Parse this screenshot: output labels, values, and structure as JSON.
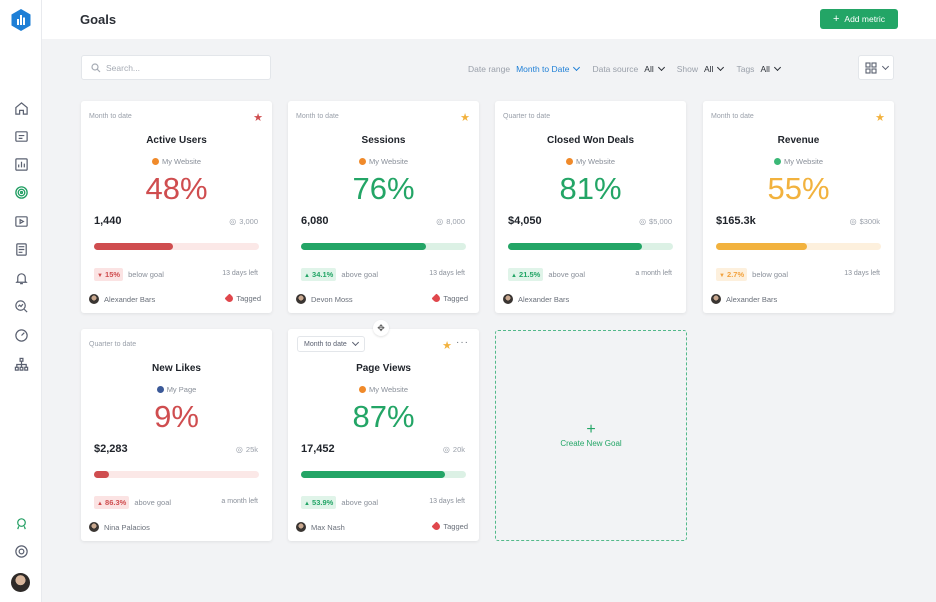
{
  "app": {
    "page_title": "Goals",
    "add_metric_label": "Add metric"
  },
  "search": {
    "placeholder": "Search..."
  },
  "filters": {
    "date_range_label": "Date range",
    "date_range_value": "Month to Date",
    "data_source_label": "Data source",
    "data_source_value": "All",
    "show_label": "Show",
    "show_value": "All",
    "tags_label": "Tags",
    "tags_value": "All"
  },
  "colors": {
    "accent": "#23a566",
    "red": "#cf4d4f",
    "green": "#23a566",
    "orange": "#f2b23e",
    "blue": "#1e7fd6"
  },
  "sidebar": {
    "items": [
      {
        "name": "home-icon"
      },
      {
        "name": "dashboard-icon"
      },
      {
        "name": "reports-icon"
      },
      {
        "name": "goals-icon"
      },
      {
        "name": "video-icon"
      },
      {
        "name": "databoards-icon"
      },
      {
        "name": "alerts-icon"
      },
      {
        "name": "explore-icon"
      },
      {
        "name": "gauge-icon"
      },
      {
        "name": "hierarchy-icon"
      },
      {
        "name": "help-icon"
      },
      {
        "name": "support-icon"
      }
    ]
  },
  "goals": [
    {
      "period": "Month to date",
      "title": "Active Users",
      "source": "My Website",
      "source_color": "#f08a2a",
      "pct": "48%",
      "color": "red",
      "current": "1,440",
      "target": "3,000",
      "progress": 0.48,
      "delta": "15%",
      "delta_dir": "down",
      "delta_text": "below goal",
      "days": "13 days left",
      "owner": "Alexander Bars",
      "tagged": "Tagged",
      "star": "red"
    },
    {
      "period": "Month to date",
      "title": "Sessions",
      "source": "My Website",
      "source_color": "#f08a2a",
      "pct": "76%",
      "color": "green",
      "current": "6,080",
      "target": "8,000",
      "progress": 0.76,
      "delta": "34.1%",
      "delta_dir": "up",
      "delta_text": "above goal",
      "days": "13 days left",
      "owner": "Devon Moss",
      "tagged": "Tagged",
      "star": "orange"
    },
    {
      "period": "Quarter to date",
      "title": "Closed Won Deals",
      "source": "My Website",
      "source_color": "#f08a2a",
      "pct": "81%",
      "color": "green",
      "current": "$4,050",
      "target": "$5,000",
      "progress": 0.81,
      "delta": "21.5%",
      "delta_dir": "up",
      "delta_text": "above goal",
      "days": "a month left",
      "owner": "Alexander Bars",
      "tagged": "",
      "star": ""
    },
    {
      "period": "Month to date",
      "title": "Revenue",
      "source": "My Website",
      "source_color": "#3bb877",
      "pct": "55%",
      "color": "orange",
      "current": "$165.3k",
      "target": "$300k",
      "progress": 0.55,
      "delta": "2.7%",
      "delta_dir": "down",
      "delta_text": "below goal",
      "days": "13 days left",
      "owner": "Alexander Bars",
      "tagged": "",
      "star": "orange"
    },
    {
      "period": "Quarter to date",
      "title": "New Likes",
      "source": "My Page",
      "source_color": "#3b5998",
      "pct": "9%",
      "color": "red",
      "current": "$2,283",
      "target": "25k",
      "progress": 0.09,
      "delta": "86.3%",
      "delta_dir": "up",
      "delta_text": "above goal",
      "days": "a month left",
      "owner": "Nina Palacios",
      "tagged": "",
      "star": ""
    },
    {
      "period": "Month to date",
      "title": "Page Views",
      "source": "My Website",
      "source_color": "#f08a2a",
      "pct": "87%",
      "color": "green",
      "current": "17,452",
      "target": "20k",
      "progress": 0.87,
      "delta": "53.9%",
      "delta_dir": "up",
      "delta_text": "above goal",
      "days": "13 days left",
      "owner": "Max Nash",
      "tagged": "Tagged",
      "star": "orange"
    }
  ],
  "new_goal": {
    "label": "Create New Goal"
  }
}
